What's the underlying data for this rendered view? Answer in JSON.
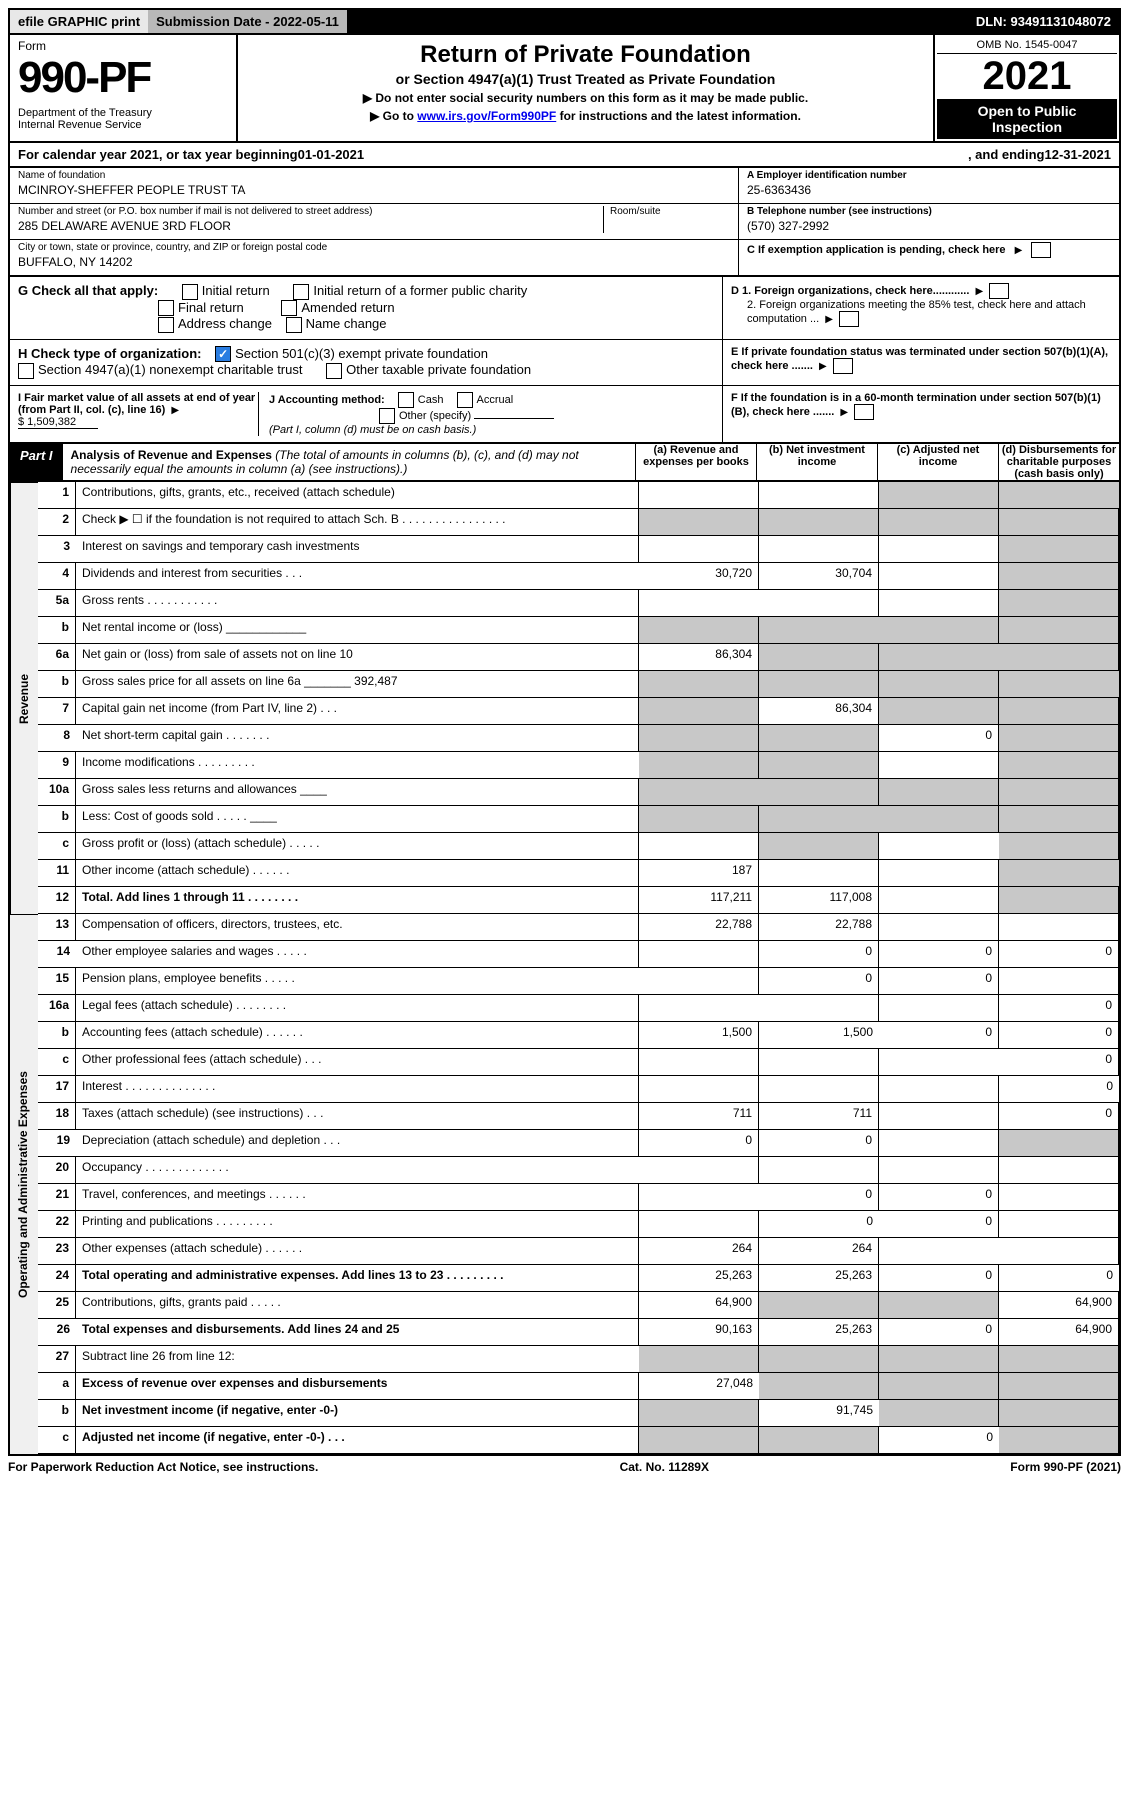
{
  "topbar": {
    "efile": "efile GRAPHIC print",
    "subdate_label": "Submission Date - ",
    "subdate": "2022-05-11",
    "dln_label": "DLN: ",
    "dln": "93491131048072"
  },
  "header": {
    "form_word": "Form",
    "form_num": "990-PF",
    "dept": "Department of the Treasury\nInternal Revenue Service",
    "title": "Return of Private Foundation",
    "subtitle": "or Section 4947(a)(1) Trust Treated as Private Foundation",
    "note1": "▶ Do not enter social security numbers on this form as it may be made public.",
    "note2_pre": "▶ Go to ",
    "note2_link": "www.irs.gov/Form990PF",
    "note2_post": " for instructions and the latest information.",
    "omb": "OMB No. 1545-0047",
    "year": "2021",
    "open": "Open to Public Inspection"
  },
  "cal": {
    "pre": "For calendar year 2021, or tax year beginning ",
    "begin": "01-01-2021",
    "mid": ", and ending ",
    "end": "12-31-2021"
  },
  "entity": {
    "name_label": "Name of foundation",
    "name": "MCINROY-SHEFFER PEOPLE TRUST TA",
    "addr_label": "Number and street (or P.O. box number if mail is not delivered to street address)",
    "addr": "285 DELAWARE AVENUE 3RD FLOOR",
    "room_label": "Room/suite",
    "room": "",
    "city_label": "City or town, state or province, country, and ZIP or foreign postal code",
    "city": "BUFFALO, NY  14202",
    "ein_label": "A Employer identification number",
    "ein": "25-6363436",
    "tel_label": "B Telephone number (see instructions)",
    "tel": "(570) 327-2992",
    "c_label": "C If exemption application is pending, check here"
  },
  "g": {
    "label": "G Check all that apply:",
    "opts": [
      "Initial return",
      "Initial return of a former public charity",
      "Final return",
      "Amended return",
      "Address change",
      "Name change"
    ]
  },
  "h": {
    "label": "H Check type of organization:",
    "opt1": "Section 501(c)(3) exempt private foundation",
    "opt2": "Section 4947(a)(1) nonexempt charitable trust",
    "opt3": "Other taxable private foundation"
  },
  "d": {
    "d1": "D 1. Foreign organizations, check here............",
    "d2": "2. Foreign organizations meeting the 85% test, check here and attach computation ..."
  },
  "e": "E  If private foundation status was terminated under section 507(b)(1)(A), check here .......",
  "f": "F  If the foundation is in a 60-month termination under section 507(b)(1)(B), check here .......",
  "i": {
    "label": "I Fair market value of all assets at end of year (from Part II, col. (c), line 16)",
    "val": "$  1,509,382"
  },
  "j": {
    "label": "J Accounting method:",
    "cash": "Cash",
    "accrual": "Accrual",
    "other": "Other (specify)",
    "note": "(Part I, column (d) must be on cash basis.)"
  },
  "part1": {
    "label": "Part I",
    "title": "Analysis of Revenue and Expenses",
    "title_note": " (The total of amounts in columns (b), (c), and (d) may not necessarily equal the amounts in column (a) (see instructions).)"
  },
  "cols": {
    "a": "(a) Revenue and expenses per books",
    "b": "(b) Net investment income",
    "c": "(c) Adjusted net income",
    "d": "(d) Disbursements for charitable purposes (cash basis only)"
  },
  "sections": {
    "rev": "Revenue",
    "exp": "Operating and Administrative Expenses"
  },
  "rows": [
    {
      "n": "1",
      "d": "Contributions, gifts, grants, etc., received (attach schedule)",
      "a": "",
      "b": "",
      "c": "",
      "dd": "",
      "sh": [
        "c",
        "dd"
      ]
    },
    {
      "n": "2",
      "d": "Check ▶ ☐ if the foundation is not required to attach Sch. B  .  .  .  .  .  .  .  .  .  .  .  .  .  .  .  .",
      "a": "",
      "b": "",
      "c": "",
      "dd": "",
      "sh": [
        "a",
        "b",
        "c",
        "dd"
      ]
    },
    {
      "n": "3",
      "d": "Interest on savings and temporary cash investments",
      "a": "",
      "b": "",
      "c": "",
      "dd": "",
      "sh": [
        "dd"
      ]
    },
    {
      "n": "4",
      "d": "Dividends and interest from securities  .  .  .",
      "a": "30,720",
      "b": "30,704",
      "c": "",
      "dd": "",
      "sh": [
        "dd"
      ]
    },
    {
      "n": "5a",
      "d": "Gross rents  .  .  .  .  .  .  .  .  .  .  .",
      "a": "",
      "b": "",
      "c": "",
      "dd": "",
      "sh": [
        "dd"
      ]
    },
    {
      "n": "b",
      "d": "Net rental income or (loss)  ____________",
      "a": "",
      "b": "",
      "c": "",
      "dd": "",
      "sh": [
        "a",
        "b",
        "c",
        "dd"
      ]
    },
    {
      "n": "6a",
      "d": "Net gain or (loss) from sale of assets not on line 10",
      "a": "86,304",
      "b": "",
      "c": "",
      "dd": "",
      "sh": [
        "b",
        "c",
        "dd"
      ]
    },
    {
      "n": "b",
      "d": "Gross sales price for all assets on line 6a _______ 392,487",
      "a": "",
      "b": "",
      "c": "",
      "dd": "",
      "sh": [
        "a",
        "b",
        "c",
        "dd"
      ]
    },
    {
      "n": "7",
      "d": "Capital gain net income (from Part IV, line 2)  .  .  .",
      "a": "",
      "b": "86,304",
      "c": "",
      "dd": "",
      "sh": [
        "a",
        "c",
        "dd"
      ]
    },
    {
      "n": "8",
      "d": "Net short-term capital gain  .  .  .  .  .  .  .",
      "a": "",
      "b": "",
      "c": "0",
      "dd": "",
      "sh": [
        "a",
        "b",
        "dd"
      ]
    },
    {
      "n": "9",
      "d": "Income modifications  .  .  .  .  .  .  .  .  .",
      "a": "",
      "b": "",
      "c": "",
      "dd": "",
      "sh": [
        "a",
        "b",
        "dd"
      ]
    },
    {
      "n": "10a",
      "d": "Gross sales less returns and allowances  ____",
      "a": "",
      "b": "",
      "c": "",
      "dd": "",
      "sh": [
        "a",
        "b",
        "c",
        "dd"
      ]
    },
    {
      "n": "b",
      "d": "Less: Cost of goods sold  .  .  .  .  .  ____",
      "a": "",
      "b": "",
      "c": "",
      "dd": "",
      "sh": [
        "a",
        "b",
        "c",
        "dd"
      ]
    },
    {
      "n": "c",
      "d": "Gross profit or (loss) (attach schedule)  .  .  .  .  .",
      "a": "",
      "b": "",
      "c": "",
      "dd": "",
      "sh": [
        "b",
        "dd"
      ]
    },
    {
      "n": "11",
      "d": "Other income (attach schedule)  .  .  .  .  .  .",
      "a": "187",
      "b": "",
      "c": "",
      "dd": "",
      "sh": [
        "dd"
      ]
    },
    {
      "n": "12",
      "d": "Total. Add lines 1 through 11  .  .  .  .  .  .  .  .",
      "a": "117,211",
      "b": "117,008",
      "c": "",
      "dd": "",
      "bold": true,
      "sh": [
        "dd"
      ]
    },
    {
      "n": "13",
      "d": "Compensation of officers, directors, trustees, etc.",
      "a": "22,788",
      "b": "22,788",
      "c": "",
      "dd": ""
    },
    {
      "n": "14",
      "d": "Other employee salaries and wages  .  .  .  .  .",
      "a": "",
      "b": "0",
      "c": "0",
      "dd": "0"
    },
    {
      "n": "15",
      "d": "Pension plans, employee benefits  .  .  .  .  .",
      "a": "",
      "b": "0",
      "c": "0",
      "dd": ""
    },
    {
      "n": "16a",
      "d": "Legal fees (attach schedule)  .  .  .  .  .  .  .  .",
      "a": "",
      "b": "",
      "c": "",
      "dd": "0"
    },
    {
      "n": "b",
      "d": "Accounting fees (attach schedule)  .  .  .  .  .  .",
      "a": "1,500",
      "b": "1,500",
      "c": "0",
      "dd": "0"
    },
    {
      "n": "c",
      "d": "Other professional fees (attach schedule)  .  .  .",
      "a": "",
      "b": "",
      "c": "",
      "dd": "0"
    },
    {
      "n": "17",
      "d": "Interest  .  .  .  .  .  .  .  .  .  .  .  .  .  .",
      "a": "",
      "b": "",
      "c": "",
      "dd": "0"
    },
    {
      "n": "18",
      "d": "Taxes (attach schedule) (see instructions)  .  .  .",
      "a": "711",
      "b": "711",
      "c": "",
      "dd": "0"
    },
    {
      "n": "19",
      "d": "Depreciation (attach schedule) and depletion  .  .  .",
      "a": "0",
      "b": "0",
      "c": "",
      "dd": "",
      "sh": [
        "dd"
      ]
    },
    {
      "n": "20",
      "d": "Occupancy  .  .  .  .  .  .  .  .  .  .  .  .  .",
      "a": "",
      "b": "",
      "c": "",
      "dd": ""
    },
    {
      "n": "21",
      "d": "Travel, conferences, and meetings  .  .  .  .  .  .",
      "a": "",
      "b": "0",
      "c": "0",
      "dd": ""
    },
    {
      "n": "22",
      "d": "Printing and publications  .  .  .  .  .  .  .  .  .",
      "a": "",
      "b": "0",
      "c": "0",
      "dd": ""
    },
    {
      "n": "23",
      "d": "Other expenses (attach schedule)  .  .  .  .  .  .",
      "a": "264",
      "b": "264",
      "c": "",
      "dd": ""
    },
    {
      "n": "24",
      "d": "Total operating and administrative expenses. Add lines 13 to 23  .  .  .  .  .  .  .  .  .",
      "a": "25,263",
      "b": "25,263",
      "c": "0",
      "dd": "0",
      "bold": true
    },
    {
      "n": "25",
      "d": "Contributions, gifts, grants paid  .  .  .  .  .",
      "a": "64,900",
      "b": "",
      "c": "",
      "dd": "64,900",
      "sh": [
        "b",
        "c"
      ]
    },
    {
      "n": "26",
      "d": "Total expenses and disbursements. Add lines 24 and 25",
      "a": "90,163",
      "b": "25,263",
      "c": "0",
      "dd": "64,900",
      "bold": true
    },
    {
      "n": "27",
      "d": "Subtract line 26 from line 12:",
      "a": "",
      "b": "",
      "c": "",
      "dd": "",
      "sh": [
        "a",
        "b",
        "c",
        "dd"
      ]
    },
    {
      "n": "a",
      "d": "Excess of revenue over expenses and disbursements",
      "a": "27,048",
      "b": "",
      "c": "",
      "dd": "",
      "bold": true,
      "sh": [
        "b",
        "c",
        "dd"
      ]
    },
    {
      "n": "b",
      "d": "Net investment income (if negative, enter -0-)",
      "a": "",
      "b": "91,745",
      "c": "",
      "dd": "",
      "bold": true,
      "sh": [
        "a",
        "c",
        "dd"
      ]
    },
    {
      "n": "c",
      "d": "Adjusted net income (if negative, enter -0-)  .  .  .",
      "a": "",
      "b": "",
      "c": "0",
      "dd": "",
      "bold": true,
      "sh": [
        "a",
        "b",
        "dd"
      ]
    }
  ],
  "footer": {
    "pra": "For Paperwork Reduction Act Notice, see instructions.",
    "cat": "Cat. No. 11289X",
    "form": "Form 990-PF (2021)"
  }
}
